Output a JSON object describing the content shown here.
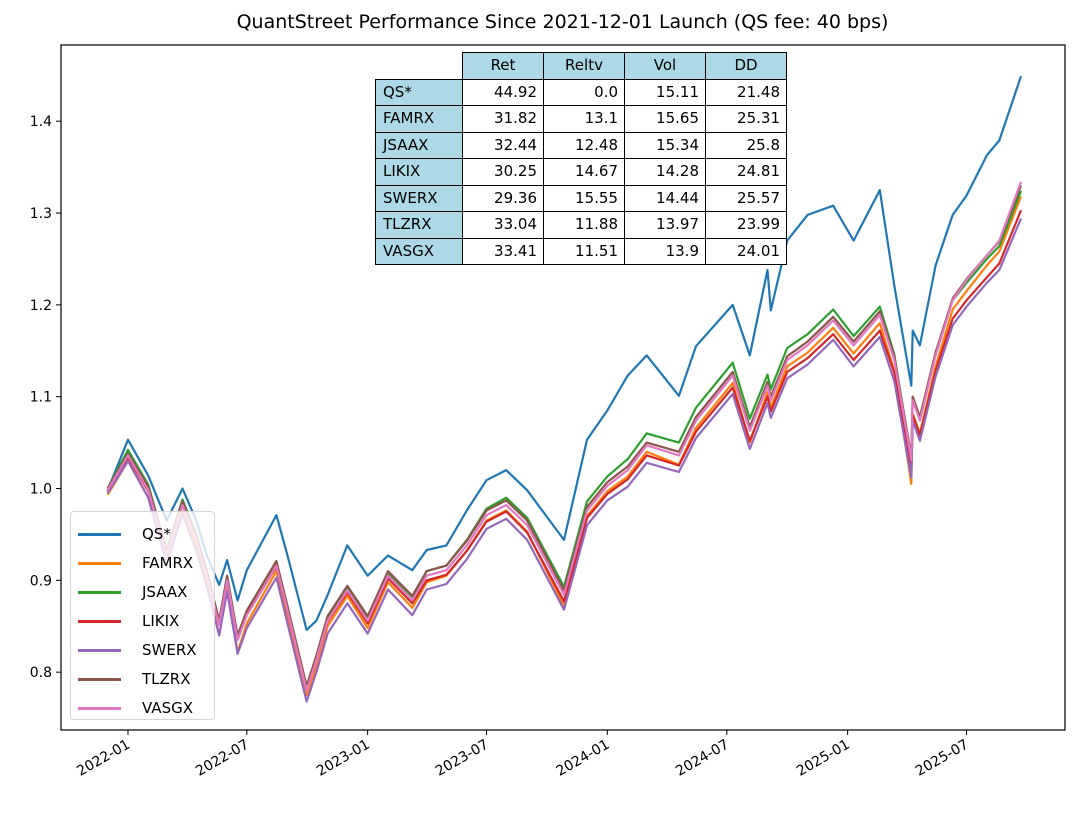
{
  "chart_data": {
    "type": "line",
    "title": "QuantStreet Performance Since 2021-12-01 Launch  (QS fee: 40 bps)",
    "xlabel": "",
    "ylabel": "",
    "xlim": [
      "2021-09-21",
      "2025-11-28"
    ],
    "ylim": [
      0.737,
      1.483
    ],
    "x_ticks": [
      "2022-01",
      "2022-07",
      "2023-01",
      "2023-07",
      "2024-01",
      "2024-07",
      "2025-01",
      "2025-07"
    ],
    "y_ticks": [
      "0.8",
      "0.9",
      "1.0",
      "1.1",
      "1.2",
      "1.3",
      "1.4"
    ],
    "grid": false,
    "legend_position": "lower-left",
    "x": [
      "2021-12-01",
      "2022-01-01",
      "2022-02-01",
      "2022-03-01",
      "2022-03-25",
      "2022-04-15",
      "2022-05-01",
      "2022-05-20",
      "2022-06-01",
      "2022-06-17",
      "2022-07-01",
      "2022-08-15",
      "2022-09-01",
      "2022-09-30",
      "2022-10-15",
      "2022-11-01",
      "2022-12-01",
      "2023-01-01",
      "2023-02-01",
      "2023-03-10",
      "2023-04-01",
      "2023-05-01",
      "2023-06-01",
      "2023-07-01",
      "2023-07-31",
      "2023-09-01",
      "2023-10-27",
      "2023-12-01",
      "2024-01-01",
      "2024-02-01",
      "2024-03-01",
      "2024-04-19",
      "2024-05-15",
      "2024-07-10",
      "2024-08-05",
      "2024-09-01",
      "2024-09-06",
      "2024-10-01",
      "2024-11-01",
      "2024-12-10",
      "2025-01-10",
      "2025-02-19",
      "2025-03-13",
      "2025-04-08",
      "2025-04-10",
      "2025-04-21",
      "2025-05-15",
      "2025-06-10",
      "2025-07-01",
      "2025-08-01",
      "2025-08-20",
      "2025-09-22"
    ],
    "series": [
      {
        "name": "QS*",
        "color": "#1f77b4",
        "values": [
          0.998,
          1.053,
          1.014,
          0.965,
          1.0,
          0.965,
          0.927,
          0.895,
          0.922,
          0.878,
          0.911,
          0.971,
          0.927,
          0.846,
          0.856,
          0.884,
          0.938,
          0.905,
          0.927,
          0.911,
          0.933,
          0.938,
          0.976,
          1.009,
          1.02,
          0.998,
          0.944,
          1.053,
          1.085,
          1.123,
          1.145,
          1.101,
          1.155,
          1.2,
          1.145,
          1.238,
          1.194,
          1.27,
          1.298,
          1.308,
          1.27,
          1.325,
          1.221,
          1.112,
          1.172,
          1.156,
          1.243,
          1.298,
          1.319,
          1.363,
          1.379,
          1.449
        ]
      },
      {
        "name": "FAMRX",
        "color": "#ff7f0e",
        "values": [
          0.993,
          1.03,
          0.99,
          0.92,
          0.975,
          0.937,
          0.898,
          0.84,
          0.893,
          0.822,
          0.853,
          0.91,
          0.86,
          0.775,
          0.806,
          0.85,
          0.883,
          0.848,
          0.898,
          0.87,
          0.898,
          0.905,
          0.932,
          0.965,
          0.976,
          0.953,
          0.872,
          0.97,
          0.997,
          1.013,
          1.04,
          1.026,
          1.066,
          1.115,
          1.05,
          1.105,
          1.088,
          1.133,
          1.148,
          1.175,
          1.147,
          1.18,
          1.128,
          1.005,
          1.082,
          1.06,
          1.133,
          1.195,
          1.215,
          1.243,
          1.258,
          1.318
        ]
      },
      {
        "name": "JSAAX",
        "color": "#2ca02c",
        "values": [
          1.0,
          1.042,
          1.004,
          0.932,
          0.988,
          0.95,
          0.91,
          0.855,
          0.904,
          0.838,
          0.865,
          0.92,
          0.87,
          0.783,
          0.817,
          0.86,
          0.893,
          0.86,
          0.908,
          0.882,
          0.91,
          0.916,
          0.944,
          0.978,
          0.99,
          0.968,
          0.893,
          0.986,
          1.013,
          1.032,
          1.06,
          1.05,
          1.088,
          1.137,
          1.076,
          1.124,
          1.108,
          1.153,
          1.168,
          1.195,
          1.166,
          1.198,
          1.146,
          1.03,
          1.1,
          1.077,
          1.148,
          1.205,
          1.224,
          1.25,
          1.264,
          1.324
        ]
      },
      {
        "name": "LIKIX",
        "color": "#d62728",
        "values": [
          0.997,
          1.034,
          0.997,
          0.928,
          0.985,
          0.945,
          0.905,
          0.852,
          0.9,
          0.837,
          0.863,
          0.915,
          0.866,
          0.782,
          0.814,
          0.855,
          0.887,
          0.853,
          0.902,
          0.875,
          0.9,
          0.906,
          0.932,
          0.964,
          0.975,
          0.952,
          0.877,
          0.968,
          0.994,
          1.01,
          1.036,
          1.025,
          1.062,
          1.11,
          1.052,
          1.1,
          1.084,
          1.127,
          1.142,
          1.168,
          1.14,
          1.172,
          1.126,
          1.02,
          1.08,
          1.058,
          1.128,
          1.185,
          1.205,
          1.23,
          1.245,
          1.303
        ]
      },
      {
        "name": "SWERX",
        "color": "#9467bd",
        "values": [
          0.995,
          1.03,
          0.99,
          0.918,
          0.972,
          0.932,
          0.893,
          0.84,
          0.888,
          0.82,
          0.848,
          0.903,
          0.853,
          0.768,
          0.8,
          0.842,
          0.875,
          0.842,
          0.89,
          0.862,
          0.89,
          0.896,
          0.923,
          0.956,
          0.967,
          0.944,
          0.868,
          0.96,
          0.987,
          1.002,
          1.028,
          1.018,
          1.055,
          1.103,
          1.043,
          1.093,
          1.077,
          1.12,
          1.135,
          1.162,
          1.133,
          1.165,
          1.117,
          1.012,
          1.074,
          1.052,
          1.122,
          1.178,
          1.198,
          1.224,
          1.238,
          1.294
        ]
      },
      {
        "name": "TLZRX",
        "color": "#8c564b",
        "values": [
          1.0,
          1.038,
          1.002,
          0.932,
          0.986,
          0.948,
          0.91,
          0.856,
          0.905,
          0.84,
          0.867,
          0.921,
          0.872,
          0.785,
          0.818,
          0.861,
          0.894,
          0.861,
          0.91,
          0.883,
          0.91,
          0.916,
          0.943,
          0.976,
          0.987,
          0.965,
          0.889,
          0.98,
          1.007,
          1.024,
          1.05,
          1.04,
          1.078,
          1.127,
          1.067,
          1.116,
          1.1,
          1.144,
          1.16,
          1.187,
          1.16,
          1.193,
          1.144,
          1.035,
          1.1,
          1.078,
          1.148,
          1.207,
          1.228,
          1.254,
          1.269,
          1.33
        ]
      },
      {
        "name": "VASGX",
        "color": "#e377c2",
        "values": [
          0.998,
          1.036,
          0.998,
          0.927,
          0.982,
          0.944,
          0.905,
          0.851,
          0.9,
          0.835,
          0.862,
          0.916,
          0.867,
          0.78,
          0.813,
          0.856,
          0.889,
          0.856,
          0.905,
          0.878,
          0.905,
          0.911,
          0.938,
          0.971,
          0.982,
          0.96,
          0.884,
          0.976,
          1.003,
          1.02,
          1.047,
          1.036,
          1.074,
          1.123,
          1.063,
          1.112,
          1.096,
          1.14,
          1.156,
          1.183,
          1.156,
          1.189,
          1.14,
          1.031,
          1.096,
          1.074,
          1.145,
          1.205,
          1.227,
          1.254,
          1.27,
          1.334
        ]
      }
    ],
    "table": {
      "columns": [
        "Ret",
        "Reltv",
        "Vol",
        "DD"
      ],
      "rows": [
        {
          "label": "QS*",
          "cells": [
            "44.92",
            "0.0",
            "15.11",
            "21.48"
          ]
        },
        {
          "label": "FAMRX",
          "cells": [
            "31.82",
            "13.1",
            "15.65",
            "25.31"
          ]
        },
        {
          "label": "JSAAX",
          "cells": [
            "32.44",
            "12.48",
            "15.34",
            "25.8"
          ]
        },
        {
          "label": "LIKIX",
          "cells": [
            "30.25",
            "14.67",
            "14.28",
            "24.81"
          ]
        },
        {
          "label": "SWERX",
          "cells": [
            "29.36",
            "15.55",
            "14.44",
            "25.57"
          ]
        },
        {
          "label": "TLZRX",
          "cells": [
            "33.04",
            "11.88",
            "13.97",
            "23.99"
          ]
        },
        {
          "label": "VASGX",
          "cells": [
            "33.41",
            "11.51",
            "13.9",
            "24.01"
          ]
        }
      ],
      "header_color": "#add8e6"
    }
  }
}
